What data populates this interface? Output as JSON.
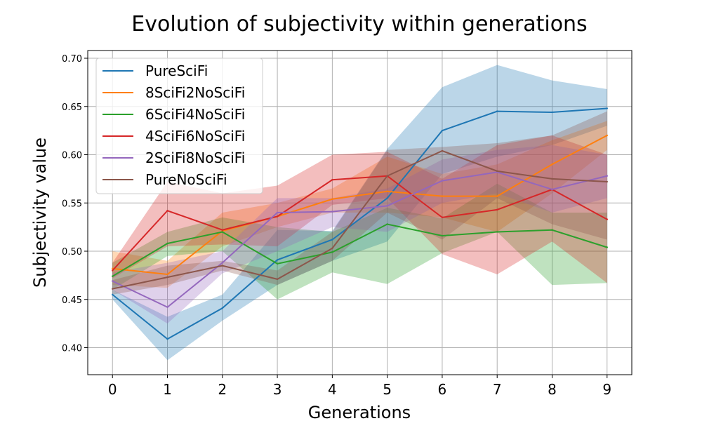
{
  "chart_data": {
    "type": "line",
    "title": "Evolution of subjectivity within generations",
    "xlabel": "Generations",
    "ylabel": "Subjectivity value",
    "x": [
      0,
      1,
      2,
      3,
      4,
      5,
      6,
      7,
      8,
      9
    ],
    "xlim": [
      -0.45,
      9.45
    ],
    "ylim": [
      0.372,
      0.708
    ],
    "yticks": [
      "0.40",
      "0.45",
      "0.50",
      "0.55",
      "0.60",
      "0.65",
      "0.70"
    ],
    "xticks": [
      "0",
      "1",
      "2",
      "3",
      "4",
      "5",
      "6",
      "7",
      "8",
      "9"
    ],
    "grid": true,
    "legend_position": "top-left",
    "series": [
      {
        "name": "PureSciFi",
        "color": "#1f77b4",
        "values": [
          0.455,
          0.409,
          0.441,
          0.491,
          0.512,
          0.555,
          0.625,
          0.645,
          0.644,
          0.648
        ],
        "lower": [
          0.45,
          0.387,
          0.428,
          0.465,
          0.49,
          0.51,
          0.58,
          0.598,
          0.61,
          0.63
        ],
        "upper": [
          0.46,
          0.432,
          0.455,
          0.522,
          0.521,
          0.606,
          0.67,
          0.693,
          0.677,
          0.668
        ]
      },
      {
        "name": "8SciFi2NoSciFi",
        "color": "#ff7f0e",
        "values": [
          0.482,
          0.476,
          0.521,
          0.536,
          0.554,
          0.562,
          0.557,
          0.557,
          0.59,
          0.62
        ],
        "lower": [
          0.465,
          0.462,
          0.505,
          0.525,
          0.54,
          0.54,
          0.535,
          0.52,
          0.56,
          0.605
        ],
        "upper": [
          0.5,
          0.49,
          0.54,
          0.55,
          0.565,
          0.598,
          0.58,
          0.59,
          0.615,
          0.635
        ]
      },
      {
        "name": "6SciFi4NoSciFi",
        "color": "#2ca02c",
        "values": [
          0.474,
          0.508,
          0.52,
          0.487,
          0.499,
          0.528,
          0.516,
          0.52,
          0.522,
          0.504
        ],
        "lower": [
          0.46,
          0.495,
          0.5,
          0.45,
          0.478,
          0.466,
          0.498,
          0.52,
          0.465,
          0.467
        ],
        "upper": [
          0.488,
          0.52,
          0.535,
          0.525,
          0.52,
          0.545,
          0.534,
          0.57,
          0.54,
          0.54
        ]
      },
      {
        "name": "4SciFi6NoSciFi",
        "color": "#d62728",
        "values": [
          0.48,
          0.542,
          0.522,
          0.536,
          0.574,
          0.578,
          0.535,
          0.543,
          0.564,
          0.533
        ],
        "lower": [
          0.472,
          0.505,
          0.507,
          0.505,
          0.548,
          0.555,
          0.497,
          0.476,
          0.51,
          0.467
        ],
        "upper": [
          0.488,
          0.572,
          0.56,
          0.568,
          0.6,
          0.603,
          0.575,
          0.61,
          0.62,
          0.6
        ]
      },
      {
        "name": "2SciFi8NoSciFi",
        "color": "#9467bd",
        "values": [
          0.469,
          0.442,
          0.488,
          0.54,
          0.541,
          0.547,
          0.573,
          0.582,
          0.564,
          0.578
        ],
        "lower": [
          0.46,
          0.425,
          0.477,
          0.5,
          0.525,
          0.52,
          0.55,
          0.56,
          0.54,
          0.555
        ],
        "upper": [
          0.478,
          0.488,
          0.5,
          0.555,
          0.555,
          0.565,
          0.595,
          0.605,
          0.61,
          0.6
        ]
      },
      {
        "name": "PureNoSciFi",
        "color": "#8c564b",
        "values": [
          0.461,
          0.473,
          0.485,
          0.471,
          0.503,
          0.578,
          0.604,
          0.583,
          0.575,
          0.572
        ],
        "lower": [
          0.455,
          0.465,
          0.48,
          0.465,
          0.49,
          0.54,
          0.512,
          0.555,
          0.528,
          0.512
        ],
        "upper": [
          0.47,
          0.485,
          0.49,
          0.48,
          0.52,
          0.605,
          0.608,
          0.612,
          0.62,
          0.645
        ]
      }
    ]
  }
}
